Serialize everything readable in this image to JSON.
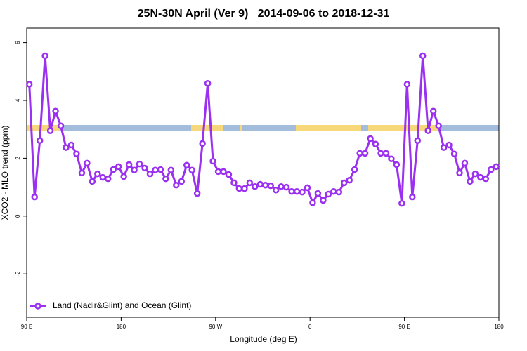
{
  "chart_data": {
    "type": "line",
    "title": "25N-30N April (Ver 9)   2014-09-06 to 2018-12-31",
    "xlabel": "Longitude (deg E)",
    "ylabel": "XCO2 - MLO trend (ppm)",
    "xlim": [
      90,
      540
    ],
    "ylim": [
      -3.5,
      6.5
    ],
    "xticks": [
      {
        "value": 90,
        "label": "90 E"
      },
      {
        "value": 180,
        "label": "180"
      },
      {
        "value": 270,
        "label": "90 W"
      },
      {
        "value": 360,
        "label": "0"
      },
      {
        "value": 450,
        "label": "90 E"
      },
      {
        "value": 540,
        "label": "180"
      }
    ],
    "yticks": [
      6,
      4,
      2,
      0,
      -2
    ],
    "legend": "bottom-left",
    "x": [
      92.5,
      97.5,
      102.5,
      107.5,
      112.5,
      117.5,
      122.5,
      127.5,
      132.5,
      137.5,
      142.5,
      147.5,
      152.5,
      157.5,
      162.5,
      167.5,
      172.5,
      177.5,
      182.5,
      187.5,
      192.5,
      197.5,
      202.5,
      207.5,
      212.5,
      217.5,
      222.5,
      227.5,
      232.5,
      237.5,
      242.5,
      247.5,
      252.5,
      257.5,
      262.5,
      267.5,
      272.5,
      277.5,
      282.5,
      287.5,
      292.5,
      297.5,
      302.5,
      307.5,
      312.5,
      317.5,
      322.5,
      327.5,
      332.5,
      337.5,
      342.5,
      347.5,
      352.5,
      357.5,
      362.5,
      367.5,
      372.5,
      377.5,
      382.5,
      387.5,
      392.5,
      397.5,
      402.5,
      407.5,
      412.5,
      417.5,
      422.5,
      427.5,
      432.5,
      437.5,
      442.5,
      447.5,
      452.5,
      457.5,
      462.5,
      467.5,
      472.5,
      477.5,
      482.5,
      487.5,
      492.5,
      497.5,
      502.5,
      507.5,
      512.5,
      517.5,
      522.5,
      527.5,
      532.5,
      537.5
    ],
    "series": [
      {
        "name": "Land (Nadir&Glint) and Ocean (Glint)",
        "color": "#9b30f0",
        "values": [
          4.56,
          0.66,
          2.61,
          5.54,
          2.95,
          3.63,
          3.12,
          2.37,
          2.46,
          2.15,
          1.49,
          1.83,
          1.2,
          1.46,
          1.34,
          1.29,
          1.61,
          1.71,
          1.37,
          1.78,
          1.59,
          1.8,
          1.66,
          1.46,
          1.59,
          1.61,
          1.29,
          1.59,
          1.07,
          1.2,
          1.76,
          1.59,
          0.78,
          2.51,
          4.59,
          1.9,
          1.54,
          1.54,
          1.44,
          1.15,
          0.95,
          0.95,
          1.15,
          1.02,
          1.1,
          1.07,
          1.05,
          0.9,
          1.02,
          1.0,
          0.85,
          0.85,
          0.83,
          0.98,
          0.46,
          0.78,
          0.54,
          0.76,
          0.85,
          0.83,
          1.15,
          1.24,
          1.61,
          2.17,
          2.17,
          2.68,
          2.49,
          2.17,
          2.17,
          1.98,
          1.78,
          0.44,
          4.56,
          0.66,
          2.61,
          5.54,
          2.95,
          3.63,
          3.12,
          2.37,
          2.46,
          2.15,
          1.49,
          1.83,
          1.2,
          1.46,
          1.34,
          1.29,
          1.61,
          1.71
        ]
      }
    ]
  }
}
